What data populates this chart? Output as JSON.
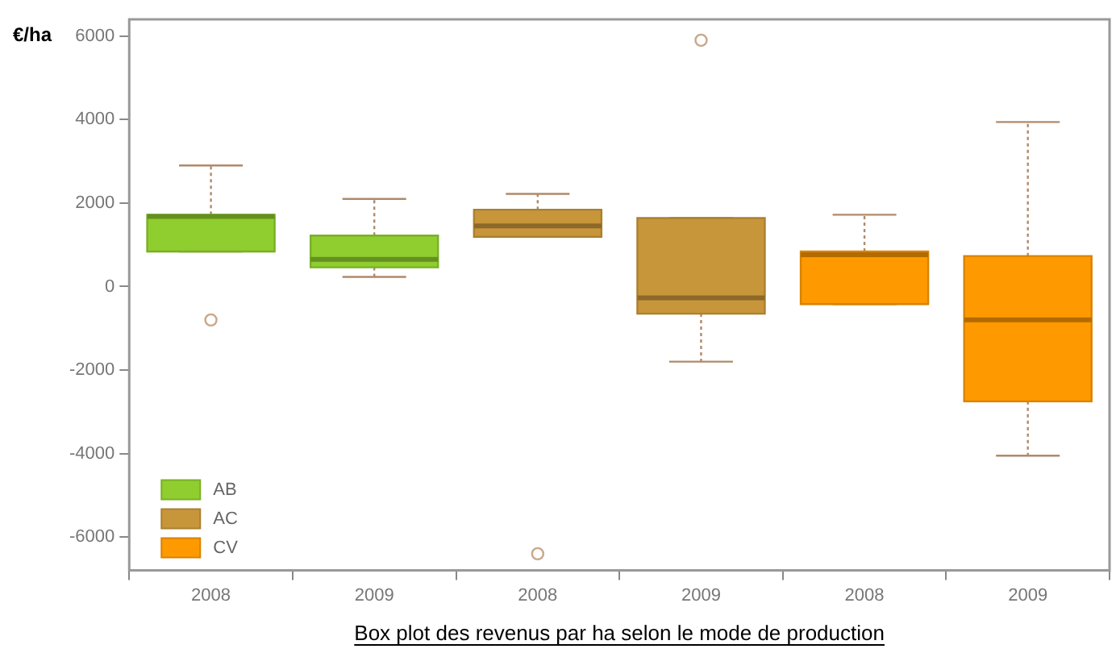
{
  "chart_data": {
    "type": "box",
    "title": "Box plot des revenus par ha selon le mode de production",
    "ylabel": "€/ha",
    "categories": [
      "2008",
      "2009",
      "2008",
      "2009",
      "2008",
      "2009"
    ],
    "series": [
      {
        "name": "AB",
        "color": "#8fce2e",
        "boxes": [
          {
            "low": 840,
            "q1": 840,
            "median": 1680,
            "q3": 1720,
            "high": 2900,
            "outliers": [
              -800
            ]
          },
          {
            "low": 230,
            "q1": 460,
            "median": 650,
            "q3": 1220,
            "high": 2100
          },
          null,
          null,
          null,
          null
        ]
      },
      {
        "name": "AC",
        "color": "#c8963a",
        "boxes": [
          null,
          null,
          {
            "low": 1190,
            "q1": 1190,
            "median": 1450,
            "q3": 1840,
            "high": 2220,
            "outliers": [
              -6400
            ]
          },
          {
            "low": -1800,
            "q1": -650,
            "median": -270,
            "q3": 1640,
            "high": 1640,
            "outliers": [
              5900
            ]
          },
          null,
          null
        ]
      },
      {
        "name": "CV",
        "color": "#ff9900",
        "boxes": [
          null,
          null,
          null,
          null,
          {
            "low": -420,
            "q1": -420,
            "median": 760,
            "q3": 840,
            "high": 1720
          },
          {
            "low": -4050,
            "q1": -2750,
            "median": -800,
            "q3": 730,
            "high": 3940
          }
        ]
      }
    ],
    "ylim": [
      -6800,
      6400
    ],
    "yticks": [
      -6000,
      -4000,
      -2000,
      0,
      2000,
      4000,
      6000
    ],
    "grid": false,
    "legend": "bottom left"
  }
}
